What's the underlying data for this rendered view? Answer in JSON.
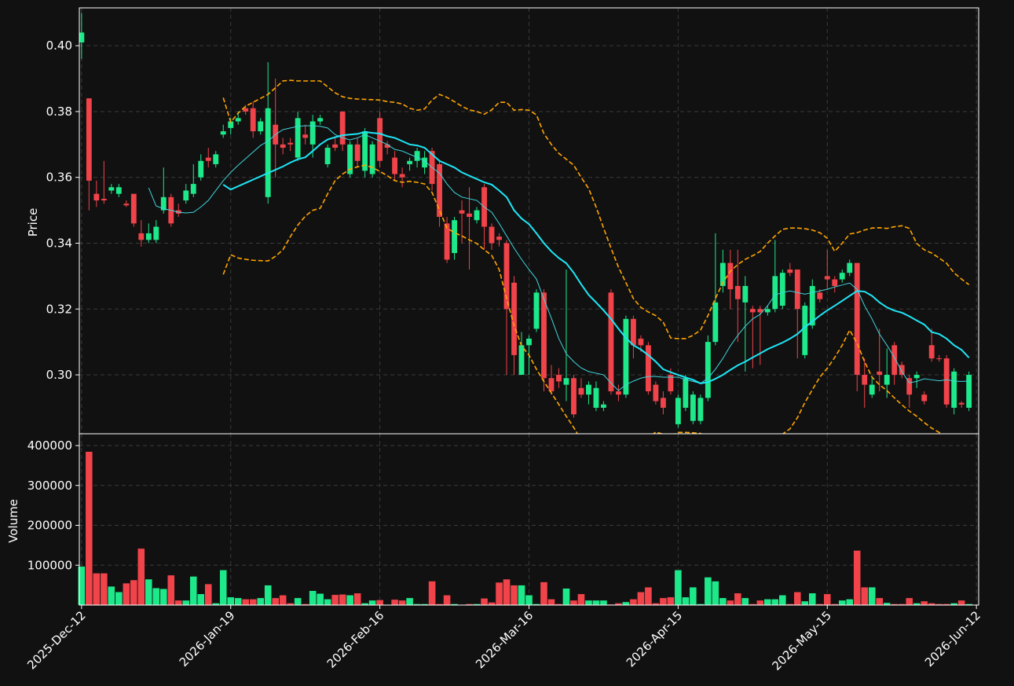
{
  "chart_data": {
    "type": "candlestick",
    "ylabel": "Price",
    "volume_ylabel": "Volume",
    "up_color": "#1de98b",
    "down_color": "#f0434a",
    "grid": true,
    "xlim": [
      -0.3,
      120.3
    ],
    "xticks": [
      {
        "value": 0,
        "label": "2025-Dec-12"
      },
      {
        "value": 20,
        "label": "2026-Jan-19"
      },
      {
        "value": 40,
        "label": "2026-Feb-16"
      },
      {
        "value": 60,
        "label": "2026-Mar-16"
      },
      {
        "value": 80,
        "label": "2026-Apr-15"
      },
      {
        "value": 100,
        "label": "2026-May-15"
      },
      {
        "value": 120,
        "label": "2026-Jun-12"
      }
    ],
    "ylim": [
      0.2821,
      0.4115
    ],
    "yticks": [
      {
        "value": 0.3,
        "label": "0.30"
      },
      {
        "value": 0.32,
        "label": "0.32"
      },
      {
        "value": 0.34,
        "label": "0.34"
      },
      {
        "value": 0.36,
        "label": "0.36"
      },
      {
        "value": 0.38,
        "label": "0.38"
      },
      {
        "value": 0.4,
        "label": "0.40"
      }
    ],
    "volume_ylim": [
      0,
      429600
    ],
    "volume_yticks": [
      100000,
      200000,
      300000,
      400000
    ],
    "open": [
      0.401,
      0.384,
      0.355,
      0.3535,
      0.356,
      0.355,
      0.352,
      0.355,
      0.343,
      0.341,
      0.341,
      0.35,
      0.354,
      0.35,
      0.353,
      0.355,
      0.36,
      0.366,
      0.364,
      0.373,
      0.375,
      0.377,
      0.381,
      0.381,
      0.374,
      0.354,
      0.376,
      0.37,
      0.3705,
      0.366,
      0.373,
      0.37,
      0.377,
      0.364,
      0.37,
      0.38,
      0.361,
      0.37,
      0.362,
      0.361,
      0.378,
      0.37,
      0.366,
      0.361,
      0.364,
      0.365,
      0.363,
      0.368,
      0.364,
      0.346,
      0.337,
      0.35,
      0.349,
      0.347,
      0.357,
      0.345,
      0.342,
      0.34,
      0.328,
      0.3,
      0.309,
      0.314,
      0.325,
      0.299,
      0.3,
      0.297,
      0.299,
      0.296,
      0.294,
      0.29,
      0.29,
      0.325,
      0.295,
      0.294,
      0.317,
      0.311,
      0.309,
      0.297,
      0.293,
      0.3,
      0.285,
      0.29,
      0.286,
      0.286,
      0.293,
      0.31,
      0.327,
      0.334,
      0.327,
      0.322,
      0.32,
      0.32,
      0.319,
      0.32,
      0.321,
      0.332,
      0.332,
      0.306,
      0.315,
      0.325,
      0.33,
      0.329,
      0.329,
      0.331,
      0.334,
      0.3,
      0.294,
      0.301,
      0.297,
      0.309,
      0.303,
      0.299,
      0.299,
      0.294,
      0.309,
      0.305,
      0.305,
      0.29,
      0.2915,
      0.29
    ],
    "high": [
      0.41,
      0.384,
      0.359,
      0.365,
      0.358,
      0.358,
      0.353,
      0.355,
      0.347,
      0.346,
      0.347,
      0.363,
      0.355,
      0.352,
      0.358,
      0.364,
      0.367,
      0.369,
      0.368,
      0.376,
      0.378,
      0.38,
      0.382,
      0.383,
      0.378,
      0.395,
      0.39,
      0.372,
      0.372,
      0.38,
      0.376,
      0.379,
      0.379,
      0.37,
      0.372,
      0.38,
      0.371,
      0.372,
      0.375,
      0.371,
      0.38,
      0.371,
      0.368,
      0.363,
      0.366,
      0.369,
      0.368,
      0.369,
      0.365,
      0.348,
      0.348,
      0.353,
      0.357,
      0.351,
      0.358,
      0.346,
      0.343,
      0.341,
      0.33,
      0.313,
      0.312,
      0.326,
      0.326,
      0.303,
      0.302,
      0.332,
      0.3,
      0.299,
      0.298,
      0.298,
      0.292,
      0.326,
      0.297,
      0.318,
      0.318,
      0.312,
      0.31,
      0.298,
      0.295,
      0.302,
      0.294,
      0.3,
      0.295,
      0.294,
      0.312,
      0.343,
      0.338,
      0.338,
      0.338,
      0.33,
      0.321,
      0.321,
      0.321,
      0.341,
      0.332,
      0.334,
      0.332,
      0.322,
      0.329,
      0.326,
      0.338,
      0.33,
      0.332,
      0.335,
      0.334,
      0.305,
      0.299,
      0.314,
      0.308,
      0.31,
      0.304,
      0.3,
      0.301,
      0.295,
      0.314,
      0.306,
      0.306,
      0.302,
      0.292,
      0.301
    ],
    "low": [
      0.396,
      0.35,
      0.351,
      0.352,
      0.355,
      0.354,
      0.351,
      0.345,
      0.339,
      0.34,
      0.34,
      0.349,
      0.345,
      0.348,
      0.352,
      0.354,
      0.359,
      0.363,
      0.363,
      0.372,
      0.373,
      0.376,
      0.379,
      0.372,
      0.373,
      0.352,
      0.36,
      0.367,
      0.368,
      0.365,
      0.37,
      0.366,
      0.376,
      0.363,
      0.368,
      0.368,
      0.36,
      0.363,
      0.36,
      0.36,
      0.363,
      0.367,
      0.359,
      0.357,
      0.362,
      0.363,
      0.361,
      0.356,
      0.345,
      0.334,
      0.335,
      0.34,
      0.332,
      0.346,
      0.338,
      0.338,
      0.339,
      0.3,
      0.3,
      0.3,
      0.3,
      0.313,
      0.295,
      0.294,
      0.296,
      0.292,
      0.287,
      0.293,
      0.291,
      0.289,
      0.289,
      0.294,
      0.292,
      0.293,
      0.305,
      0.307,
      0.294,
      0.291,
      0.288,
      0.294,
      0.284,
      0.289,
      0.285,
      0.285,
      0.292,
      0.309,
      0.325,
      0.32,
      0.31,
      0.301,
      0.302,
      0.303,
      0.318,
      0.319,
      0.32,
      0.33,
      0.305,
      0.305,
      0.314,
      0.322,
      0.326,
      0.325,
      0.328,
      0.33,
      0.295,
      0.29,
      0.293,
      0.295,
      0.293,
      0.297,
      0.299,
      0.29,
      0.296,
      0.291,
      0.304,
      0.304,
      0.29,
      0.288,
      0.29,
      0.289
    ],
    "close": [
      0.404,
      0.359,
      0.353,
      0.353,
      0.357,
      0.357,
      0.3515,
      0.346,
      0.341,
      0.343,
      0.345,
      0.354,
      0.346,
      0.349,
      0.356,
      0.358,
      0.365,
      0.365,
      0.367,
      0.374,
      0.377,
      0.378,
      0.38,
      0.374,
      0.377,
      0.381,
      0.37,
      0.369,
      0.37,
      0.378,
      0.372,
      0.377,
      0.378,
      0.369,
      0.369,
      0.37,
      0.37,
      0.365,
      0.374,
      0.37,
      0.365,
      0.369,
      0.361,
      0.36,
      0.365,
      0.368,
      0.366,
      0.358,
      0.348,
      0.335,
      0.347,
      0.349,
      0.348,
      0.35,
      0.345,
      0.34,
      0.341,
      0.32,
      0.306,
      0.309,
      0.311,
      0.325,
      0.299,
      0.295,
      0.298,
      0.299,
      0.288,
      0.294,
      0.297,
      0.296,
      0.291,
      0.295,
      0.294,
      0.317,
      0.309,
      0.309,
      0.295,
      0.292,
      0.29,
      0.295,
      0.293,
      0.299,
      0.294,
      0.293,
      0.31,
      0.322,
      0.334,
      0.326,
      0.323,
      0.327,
      0.319,
      0.319,
      0.32,
      0.33,
      0.331,
      0.331,
      0.32,
      0.321,
      0.327,
      0.323,
      0.329,
      0.327,
      0.331,
      0.334,
      0.3,
      0.297,
      0.297,
      0.3,
      0.3,
      0.3,
      0.3,
      0.294,
      0.3,
      0.292,
      0.305,
      0.3048,
      0.291,
      0.301,
      0.291,
      0.3
    ],
    "volume": [
      97000,
      385000,
      80000,
      80000,
      47000,
      33000,
      55000,
      63000,
      142000,
      65000,
      43000,
      41000,
      75000,
      12000,
      12000,
      72000,
      28000,
      53000,
      5000,
      88000,
      20000,
      18000,
      15000,
      15000,
      18000,
      50000,
      18000,
      25000,
      5000,
      18000,
      3000,
      36000,
      29000,
      15000,
      26000,
      27000,
      25000,
      30000,
      5000,
      12000,
      13000,
      1000,
      14000,
      12000,
      18000,
      3000,
      3000,
      60000,
      3000,
      25000,
      3000,
      1000,
      3000,
      3000,
      17000,
      7000,
      57000,
      65000,
      50000,
      50000,
      25000,
      3000,
      58000,
      15000,
      3000,
      42000,
      12000,
      28000,
      12000,
      12000,
      12000,
      2000,
      5000,
      8000,
      15000,
      33000,
      45000,
      5000,
      18000,
      20000,
      88000,
      20000,
      45000,
      3000,
      70000,
      60000,
      18000,
      12000,
      30000,
      18000,
      3000,
      12000,
      15000,
      15000,
      25000,
      3000,
      33000,
      10000,
      30000,
      3000,
      28000,
      3000,
      12000,
      15000,
      137000,
      45000,
      45000,
      18000,
      6000,
      3000,
      3000,
      18000,
      5000,
      10000,
      5000,
      3000,
      3000,
      5000,
      12000,
      3000
    ],
    "overlays": [
      {
        "color": "#3fd6dc",
        "width": 1,
        "dash": false,
        "values": [
          null,
          null,
          null,
          null,
          null,
          null,
          null,
          null,
          null,
          0.3568,
          0.3513,
          0.3505,
          0.35,
          0.3494,
          0.3492,
          0.3494,
          0.351,
          0.353,
          0.356,
          0.359,
          0.3615,
          0.3637,
          0.3657,
          0.3677,
          0.3697,
          0.371,
          0.373,
          0.3745,
          0.375,
          0.3755,
          0.3757,
          0.3757,
          0.3755,
          0.375,
          0.373,
          0.372,
          0.3714,
          0.372,
          0.373,
          0.372,
          0.371,
          0.37,
          0.3685,
          0.368,
          0.367,
          0.3661,
          0.365,
          0.363,
          0.3613,
          0.358,
          0.3554,
          0.354,
          0.3535,
          0.353,
          0.351,
          0.3494,
          0.346,
          0.3422,
          0.3385,
          0.3351,
          0.332,
          0.3291,
          0.323,
          0.3172,
          0.311,
          0.3064,
          0.304,
          0.3021,
          0.301,
          0.3005,
          0.3,
          0.2975,
          0.2952,
          0.297,
          0.2981,
          0.299,
          0.2995,
          0.2995,
          0.2993,
          0.2993,
          0.2993,
          0.2985,
          0.298,
          0.2974,
          0.299,
          0.3017,
          0.305,
          0.3088,
          0.312,
          0.3148,
          0.317,
          0.3184,
          0.321,
          0.3243,
          0.325,
          0.3255,
          0.325,
          0.3245,
          0.325,
          0.3255,
          0.326,
          0.3267,
          0.3273,
          0.3279,
          0.326,
          0.321,
          0.317,
          0.3124,
          0.309,
          0.3053,
          0.301,
          0.2976,
          0.298,
          0.2988,
          0.2985,
          0.2982,
          0.2985,
          0.2981,
          0.298,
          0.2981
        ]
      },
      {
        "color": "#1ee6f5",
        "width": 2,
        "dash": false,
        "values": [
          null,
          null,
          null,
          null,
          null,
          null,
          null,
          null,
          null,
          null,
          null,
          null,
          null,
          null,
          null,
          null,
          null,
          null,
          null,
          0.3578,
          0.3563,
          0.3573,
          0.3583,
          0.3593,
          0.3603,
          0.3613,
          0.3623,
          0.3633,
          0.3645,
          0.3655,
          0.3661,
          0.368,
          0.37,
          0.3715,
          0.3722,
          0.3728,
          0.373,
          0.3732,
          0.3738,
          0.3735,
          0.3733,
          0.3725,
          0.372,
          0.371,
          0.37,
          0.3697,
          0.369,
          0.367,
          0.365,
          0.364,
          0.363,
          0.3615,
          0.3605,
          0.3595,
          0.3585,
          0.3578,
          0.356,
          0.354,
          0.35,
          0.3475,
          0.3458,
          0.343,
          0.34,
          0.3375,
          0.3355,
          0.3339,
          0.331,
          0.3275,
          0.3243,
          0.322,
          0.3196,
          0.317,
          0.314,
          0.3112,
          0.309,
          0.3077,
          0.306,
          0.304,
          0.3017,
          0.3008,
          0.3,
          0.2992,
          0.2985,
          0.2974,
          0.2978,
          0.2988,
          0.3,
          0.3015,
          0.3029,
          0.304,
          0.3053,
          0.3065,
          0.3078,
          0.3088,
          0.3098,
          0.311,
          0.3124,
          0.3145,
          0.3162,
          0.318,
          0.3196,
          0.321,
          0.3225,
          0.324,
          0.3255,
          0.3253,
          0.324,
          0.322,
          0.3205,
          0.3195,
          0.3189,
          0.3178,
          0.3165,
          0.3153,
          0.313,
          0.3124,
          0.311,
          0.309,
          0.3076,
          0.3052
        ]
      },
      {
        "color": "#ffa500",
        "width": 1.6,
        "dash": true,
        "values": [
          null,
          null,
          null,
          null,
          null,
          null,
          null,
          null,
          null,
          null,
          null,
          null,
          null,
          null,
          null,
          null,
          null,
          null,
          null,
          0.3842,
          0.3768,
          0.3795,
          0.3816,
          0.3828,
          0.384,
          0.3852,
          0.3872,
          0.3893,
          0.3895,
          0.3893,
          0.3893,
          0.3893,
          0.3893,
          0.3875,
          0.3857,
          0.3845,
          0.384,
          0.3838,
          0.3837,
          0.3836,
          0.3835,
          0.383,
          0.3828,
          0.3823,
          0.381,
          0.3804,
          0.3808,
          0.3835,
          0.3852,
          0.3843,
          0.383,
          0.3816,
          0.3805,
          0.38,
          0.3792,
          0.3805,
          0.3828,
          0.3828,
          0.3804,
          0.3806,
          0.3804,
          0.379,
          0.3733,
          0.37,
          0.3673,
          0.3655,
          0.3637,
          0.36,
          0.3566,
          0.351,
          0.3446,
          0.3385,
          0.3327,
          0.328,
          0.3232,
          0.3205,
          0.3191,
          0.318,
          0.316,
          0.3112,
          0.311,
          0.311,
          0.312,
          0.3136,
          0.318,
          0.3232,
          0.328,
          0.3315,
          0.3335,
          0.3351,
          0.3362,
          0.3375,
          0.34,
          0.3422,
          0.3442,
          0.3446,
          0.3446,
          0.3444,
          0.344,
          0.3432,
          0.3415,
          0.3375,
          0.34,
          0.3428,
          0.3432,
          0.344,
          0.3446,
          0.3447,
          0.3445,
          0.345,
          0.3453,
          0.3445,
          0.3399,
          0.338,
          0.337,
          0.3355,
          0.3339,
          0.331,
          0.3291,
          0.3274
        ]
      },
      {
        "color": "#ffa500",
        "width": 1.6,
        "dash": true,
        "values": [
          null,
          null,
          null,
          null,
          null,
          null,
          null,
          null,
          null,
          null,
          null,
          null,
          null,
          null,
          null,
          null,
          null,
          null,
          null,
          0.3305,
          0.3365,
          0.3355,
          0.3351,
          0.3348,
          0.3347,
          0.3346,
          0.336,
          0.338,
          0.342,
          0.3455,
          0.3482,
          0.35,
          0.3506,
          0.355,
          0.359,
          0.361,
          0.3625,
          0.3632,
          0.3637,
          0.363,
          0.3618,
          0.3605,
          0.359,
          0.3585,
          0.3588,
          0.3585,
          0.358,
          0.3554,
          0.35,
          0.3446,
          0.3432,
          0.3422,
          0.341,
          0.3399,
          0.338,
          0.3363,
          0.332,
          0.3232,
          0.315,
          0.3088,
          0.306,
          0.3017,
          0.298,
          0.2945,
          0.291,
          0.2874,
          0.284,
          0.2802,
          0.278,
          0.277,
          0.276,
          0.275,
          0.2755,
          0.276,
          0.278,
          0.279,
          0.281,
          0.2826,
          0.282,
          0.2815,
          0.2825,
          0.2825,
          0.2824,
          0.2822,
          0.2812,
          0.28,
          0.279,
          0.278,
          0.277,
          0.276,
          0.277,
          0.278,
          0.279,
          0.2805,
          0.282,
          0.2836,
          0.287,
          0.2916,
          0.2955,
          0.2993,
          0.302,
          0.3053,
          0.309,
          0.3136,
          0.3096,
          0.304,
          0.2993,
          0.297,
          0.2952,
          0.293,
          0.2909,
          0.289,
          0.2874,
          0.2855,
          0.2838,
          0.2825,
          0.2814,
          0.28,
          0.279,
          0.278
        ]
      }
    ]
  }
}
